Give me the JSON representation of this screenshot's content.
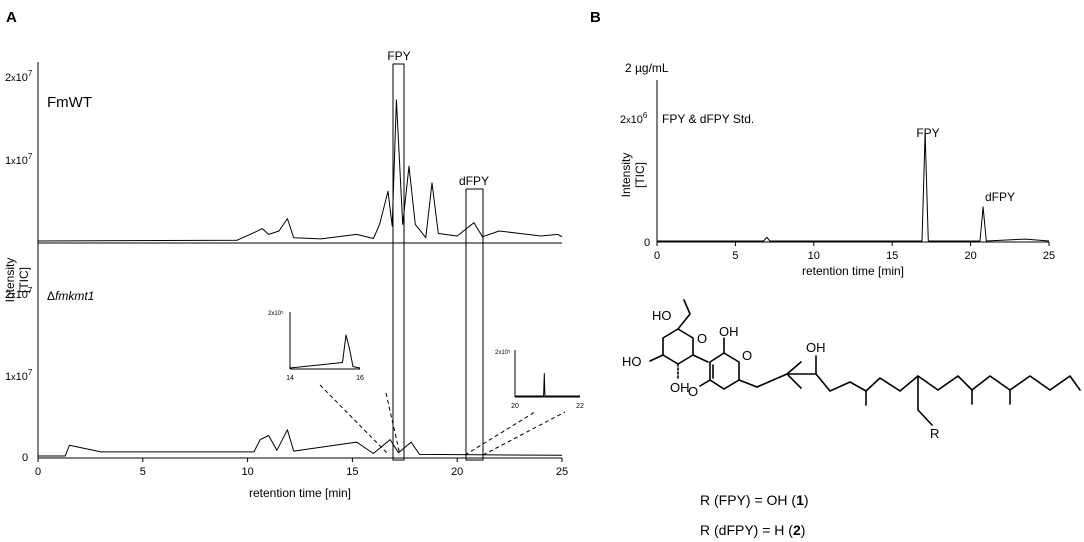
{
  "panel_a": {
    "label": "A",
    "trace_labels": {
      "wt": "FmWT",
      "ko_prefix": "Δ",
      "ko_gene": "fmkmt1"
    },
    "peak_labels": {
      "fpy": "FPY",
      "dfpy": "dFPY"
    },
    "y_axis_label_1": "Intensity",
    "y_axis_label_2": "[TIC]",
    "y_ticks_top": [
      {
        "mant": "2",
        "sep": "x",
        "base": "10",
        "exp": "7"
      },
      {
        "mant": "1",
        "sep": "x",
        "base": "10",
        "exp": "7"
      }
    ],
    "y_ticks_bottom": [
      {
        "mant": "2",
        "sep": "x",
        "base": "10",
        "exp": "7"
      },
      {
        "mant": "1",
        "sep": "x",
        "base": "10",
        "exp": "7"
      },
      {
        "mant": "0",
        "sep": "",
        "base": "",
        "exp": ""
      }
    ],
    "x_ticks": [
      "0",
      "5",
      "10",
      "15",
      "20",
      "25"
    ],
    "x_label": "retention time [min]",
    "insets": [
      {
        "ytick": "2x10⁵",
        "x_ticks": [
          "14",
          "16"
        ]
      },
      {
        "ytick": "2x10⁵",
        "x_ticks": [
          "20",
          "22"
        ]
      }
    ]
  },
  "panel_b": {
    "label": "B",
    "conc_label": "2 µg/mL",
    "std_label": "FPY & dFPY Std.",
    "y_tick": {
      "mant": "2",
      "sep": "x",
      "base": "10",
      "exp": "6"
    },
    "y_zero": "0",
    "y_axis_label_1": "Intensity",
    "y_axis_label_2": "[TIC]",
    "peak_labels": {
      "fpy": "FPY",
      "dfpy": "dFPY"
    },
    "x_ticks": [
      "0",
      "5",
      "10",
      "15",
      "20",
      "25"
    ],
    "x_label": "retention time [min]"
  },
  "structure": {
    "atoms": {
      "ho_top": "HO",
      "oh_ring": "OH",
      "ho_left": "HO",
      "oh_sub": "OH",
      "oh_pyrone": "OH",
      "oh_chain": "OH",
      "o_ring": "O",
      "o_pyrone": "O",
      "o_carbonyl": "O",
      "r": "R"
    },
    "legend": [
      {
        "prefix": "R (FPY) = OH (",
        "num": "1",
        "suffix": ")"
      },
      {
        "prefix": "R (dFPY) = H (",
        "num": "2",
        "suffix": ")"
      }
    ]
  },
  "chart_data": [
    {
      "type": "line",
      "title": "FmWT",
      "xlabel": "retention time [min]",
      "ylabel": "Intensity [TIC]",
      "xlim": [
        0,
        25
      ],
      "ylim": [
        0,
        20000000
      ],
      "grid": false,
      "x": [
        0,
        9.5,
        10.3,
        10.7,
        11.0,
        11.5,
        11.9,
        12.2,
        13.5,
        15.2,
        16.0,
        16.3,
        16.7,
        16.9,
        17.1,
        17.4,
        17.7,
        18.0,
        18.5,
        18.8,
        19.1,
        20.0,
        20.8,
        21.2,
        22.0,
        23.0,
        24.0,
        24.8,
        25.0
      ],
      "y": [
        0,
        100000,
        1000000,
        1500000,
        800000,
        1200000,
        2700000,
        400000,
        250000,
        800000,
        300000,
        2000000,
        6000000,
        1800000,
        17000000,
        2000000,
        9000000,
        2000000,
        400000,
        7000000,
        900000,
        600000,
        2200000,
        500000,
        1200000,
        900000,
        600000,
        800000,
        500000
      ],
      "annotations": [
        "FPY",
        "dFPY"
      ]
    },
    {
      "type": "line",
      "title": "Δfmkmt1",
      "xlabel": "retention time [min]",
      "ylabel": "Intensity [TIC]",
      "xlim": [
        0,
        25
      ],
      "ylim": [
        0,
        20000000
      ],
      "grid": false,
      "x": [
        0,
        1.3,
        1.5,
        3.0,
        10.3,
        10.6,
        11.0,
        11.4,
        11.9,
        12.2,
        15.2,
        16.0,
        16.8,
        17.2,
        17.8,
        18.2,
        21.0,
        25.0
      ],
      "y": [
        0,
        0,
        1300000,
        500000,
        500000,
        2000000,
        2500000,
        700000,
        3200000,
        600000,
        1700000,
        300000,
        2000000,
        400000,
        1700000,
        200000,
        150000,
        100000
      ]
    },
    {
      "type": "line",
      "title": "FPY & dFPY Std.",
      "xlabel": "retention time [min]",
      "ylabel": "Intensity [TIC]",
      "xlim": [
        0,
        25
      ],
      "ylim": [
        0,
        2600000
      ],
      "grid": false,
      "x": [
        0,
        6.8,
        7.0,
        7.2,
        16.9,
        17.1,
        17.3,
        20.6,
        20.8,
        21.0,
        23.5,
        25
      ],
      "y": [
        0,
        0,
        60000,
        0,
        0,
        1750000,
        0,
        0,
        550000,
        0,
        30000,
        0
      ],
      "annotations": [
        "FPY",
        "dFPY"
      ]
    },
    {
      "type": "line",
      "title": "",
      "xlabel": "",
      "ylabel": "",
      "xlim": [
        14,
        16
      ],
      "ylim": [
        0,
        200000
      ],
      "grid": false,
      "x": [
        14,
        15.5,
        15.6,
        15.7,
        15.8,
        16
      ],
      "y": [
        0,
        20000,
        120000,
        70000,
        5000,
        0
      ]
    },
    {
      "type": "line",
      "title": "",
      "xlabel": "",
      "ylabel": "",
      "xlim": [
        20,
        22
      ],
      "ylim": [
        0,
        200000
      ],
      "grid": false,
      "x": [
        20,
        20.88,
        20.9,
        20.92,
        22
      ],
      "y": [
        0,
        0,
        100000,
        0,
        0
      ]
    }
  ]
}
